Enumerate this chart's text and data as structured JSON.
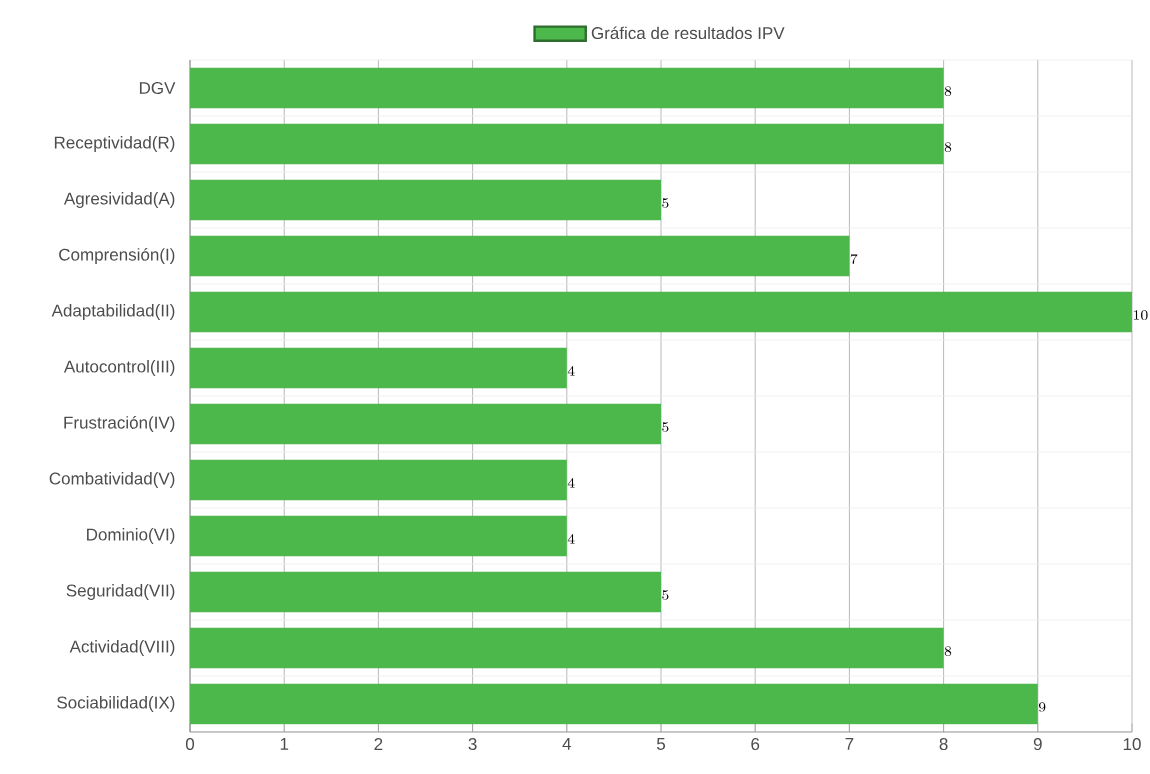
{
  "chart_data": {
    "type": "bar",
    "orientation": "horizontal",
    "categories": [
      "DGV",
      "Receptividad(R)",
      "Agresividad(A)",
      "Comprensión(I)",
      "Adaptabilidad(II)",
      "Autocontrol(III)",
      "Frustración(IV)",
      "Combatividad(V)",
      "Dominio(VI)",
      "Seguridad(VII)",
      "Actividad(VIII)",
      "Sociabilidad(IX)"
    ],
    "series": [
      {
        "name": "Gráfica de resultados IPV",
        "color": "#4cb84c",
        "values": [
          8,
          8,
          5,
          7,
          10,
          4,
          5,
          4,
          4,
          5,
          8,
          9
        ]
      }
    ],
    "xlim": [
      0,
      10
    ],
    "xticks": [
      0,
      1,
      2,
      3,
      4,
      5,
      6,
      7,
      8,
      9,
      10
    ],
    "grid": true,
    "legend": "top",
    "data_labels": true
  }
}
